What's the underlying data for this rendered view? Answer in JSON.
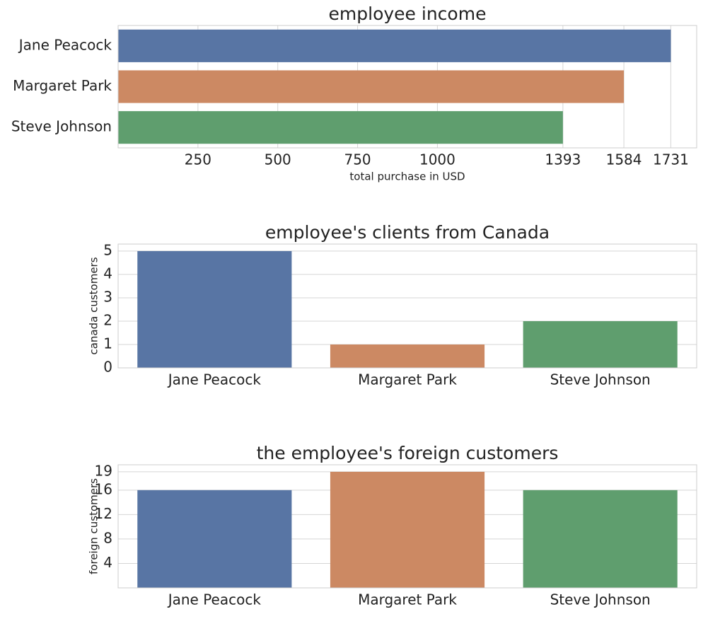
{
  "chart_data": [
    {
      "type": "bar",
      "orientation": "horizontal",
      "title": "employee income",
      "xlabel": "total purchase in USD",
      "categories": [
        "Jane Peacock",
        "Margaret Park",
        "Steve Johnson"
      ],
      "values": [
        1731,
        1584,
        1393
      ],
      "colors": [
        "#5875a4",
        "#cc8963",
        "#5f9e6e"
      ],
      "xlim": [
        0,
        1812
      ],
      "xticks": [
        250,
        500,
        750,
        1000,
        1393,
        1584,
        1731
      ],
      "grid": true
    },
    {
      "type": "bar",
      "orientation": "vertical",
      "title": "employee's clients from Canada",
      "ylabel": "canada customers",
      "categories": [
        "Jane Peacock",
        "Margaret Park",
        "Steve Johnson"
      ],
      "values": [
        5,
        1,
        2
      ],
      "colors": [
        "#5875a4",
        "#cc8963",
        "#5f9e6e"
      ],
      "ylim": [
        0,
        5.3
      ],
      "yticks": [
        0,
        1,
        2,
        3,
        4,
        5
      ],
      "grid": true
    },
    {
      "type": "bar",
      "orientation": "vertical",
      "title": "the employee's foreign customers",
      "ylabel": "foreign customers",
      "categories": [
        "Jane Peacock",
        "Margaret Park",
        "Steve Johnson"
      ],
      "values": [
        16,
        19,
        16
      ],
      "colors": [
        "#5875a4",
        "#cc8963",
        "#5f9e6e"
      ],
      "ylim": [
        0,
        20.15
      ],
      "yticks": [
        4,
        8,
        12,
        16,
        19
      ],
      "grid": true
    }
  ]
}
